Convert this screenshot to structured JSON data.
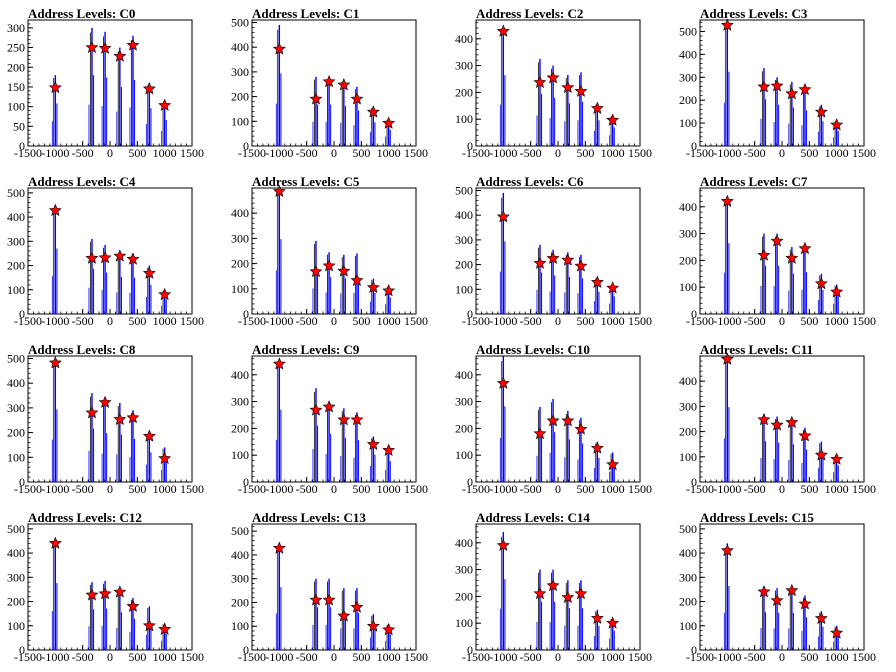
{
  "chart_data": [
    {
      "type": "bar",
      "title": "Address Levels: C0",
      "xlim": [
        -1500,
        1500
      ],
      "ylim": [
        0,
        320
      ],
      "yticks": [
        0,
        50,
        100,
        150,
        200,
        250,
        300
      ],
      "xticks": [
        -1500,
        -1000,
        -500,
        0,
        500,
        1000,
        1500
      ],
      "x": [
        -1000,
        -330,
        -90,
        180,
        420,
        720,
        1000
      ],
      "peak_values": [
        180,
        300,
        290,
        250,
        280,
        160,
        110
      ],
      "marker_values": [
        148,
        250,
        248,
        228,
        256,
        145,
        103
      ]
    },
    {
      "type": "bar",
      "title": "Address Levels: C1",
      "xlim": [
        -1500,
        1500
      ],
      "ylim": [
        0,
        510
      ],
      "yticks": [
        0,
        100,
        200,
        300,
        400,
        500
      ],
      "xticks": [
        -1500,
        -1000,
        -500,
        0,
        500,
        1000,
        1500
      ],
      "x": [
        -1000,
        -330,
        -90,
        180,
        420,
        720,
        1000
      ],
      "peak_values": [
        490,
        280,
        280,
        270,
        240,
        160,
        110
      ],
      "marker_values": [
        392,
        190,
        260,
        247,
        190,
        137,
        92
      ]
    },
    {
      "type": "bar",
      "title": "Address Levels: C2",
      "xlim": [
        -1500,
        1500
      ],
      "ylim": [
        0,
        470
      ],
      "yticks": [
        0,
        100,
        200,
        300,
        400
      ],
      "xticks": [
        -1500,
        -1000,
        -500,
        0,
        500,
        1000,
        1500
      ],
      "x": [
        -1000,
        -330,
        -90,
        180,
        420,
        720,
        1000
      ],
      "peak_values": [
        440,
        325,
        300,
        265,
        275,
        160,
        115
      ],
      "marker_values": [
        428,
        237,
        254,
        218,
        204,
        140,
        96
      ]
    },
    {
      "type": "bar",
      "title": "Address Levels: C3",
      "xlim": [
        -1500,
        1500
      ],
      "ylim": [
        0,
        550
      ],
      "yticks": [
        0,
        100,
        200,
        300,
        400,
        500
      ],
      "xticks": [
        -1500,
        -1000,
        -500,
        0,
        500,
        1000,
        1500
      ],
      "x": [
        -1000,
        -330,
        -90,
        180,
        420,
        720,
        1000
      ],
      "peak_values": [
        540,
        340,
        300,
        280,
        260,
        180,
        110
      ],
      "marker_values": [
        527,
        258,
        262,
        228,
        246,
        148,
        92
      ]
    },
    {
      "type": "bar",
      "title": "Address Levels: C4",
      "xlim": [
        -1500,
        1500
      ],
      "ylim": [
        0,
        520
      ],
      "yticks": [
        0,
        100,
        200,
        300,
        400,
        500
      ],
      "xticks": [
        -1500,
        -1000,
        -500,
        0,
        500,
        1000,
        1500
      ],
      "x": [
        -1000,
        -330,
        -90,
        180,
        420,
        720,
        1000
      ],
      "peak_values": [
        450,
        310,
        285,
        255,
        250,
        200,
        100
      ],
      "marker_values": [
        427,
        230,
        232,
        239,
        226,
        168,
        80
      ]
    },
    {
      "type": "bar",
      "title": "Address Levels: C5",
      "xlim": [
        -1500,
        1500
      ],
      "ylim": [
        0,
        500
      ],
      "yticks": [
        0,
        100,
        200,
        300,
        400
      ],
      "xticks": [
        -1500,
        -1000,
        -500,
        0,
        500,
        1000,
        1500
      ],
      "x": [
        -1000,
        -330,
        -90,
        180,
        420,
        720,
        1000
      ],
      "peak_values": [
        495,
        290,
        245,
        235,
        240,
        140,
        110
      ],
      "marker_values": [
        486,
        168,
        191,
        170,
        133,
        105,
        92
      ]
    },
    {
      "type": "bar",
      "title": "Address Levels: C6",
      "xlim": [
        -1500,
        1500
      ],
      "ylim": [
        0,
        510
      ],
      "yticks": [
        0,
        100,
        200,
        300,
        400,
        500
      ],
      "xticks": [
        -1500,
        -1000,
        -500,
        0,
        500,
        1000,
        1500
      ],
      "x": [
        -1000,
        -330,
        -90,
        180,
        420,
        720,
        1000
      ],
      "peak_values": [
        490,
        280,
        260,
        250,
        240,
        150,
        120
      ],
      "marker_values": [
        393,
        205,
        225,
        218,
        194,
        128,
        105
      ]
    },
    {
      "type": "bar",
      "title": "Address Levels: C7",
      "xlim": [
        -1500,
        1500
      ],
      "ylim": [
        0,
        470
      ],
      "yticks": [
        0,
        100,
        200,
        300,
        400
      ],
      "xticks": [
        -1500,
        -1000,
        -500,
        0,
        500,
        1000,
        1500
      ],
      "x": [
        -1000,
        -330,
        -90,
        180,
        420,
        720,
        1000
      ],
      "peak_values": [
        440,
        300,
        300,
        250,
        260,
        150,
        110
      ],
      "marker_values": [
        420,
        219,
        272,
        208,
        244,
        113,
        82
      ]
    },
    {
      "type": "bar",
      "title": "Address Levels: C8",
      "xlim": [
        -1500,
        1500
      ],
      "ylim": [
        0,
        510
      ],
      "yticks": [
        0,
        100,
        200,
        300,
        400,
        500
      ],
      "xticks": [
        -1500,
        -1000,
        -500,
        0,
        500,
        1000,
        1500
      ],
      "x": [
        -1000,
        -330,
        -90,
        180,
        420,
        720,
        1000
      ],
      "peak_values": [
        490,
        360,
        330,
        320,
        290,
        200,
        140
      ],
      "marker_values": [
        482,
        280,
        322,
        253,
        260,
        185,
        95
      ]
    },
    {
      "type": "bar",
      "title": "Address Levels: C9",
      "xlim": [
        -1500,
        1500
      ],
      "ylim": [
        0,
        470
      ],
      "yticks": [
        0,
        100,
        200,
        300,
        400
      ],
      "xticks": [
        -1500,
        -1000,
        -500,
        0,
        500,
        1000,
        1500
      ],
      "x": [
        -1000,
        -330,
        -90,
        180,
        420,
        720,
        1000
      ],
      "peak_values": [
        450,
        350,
        300,
        275,
        260,
        170,
        130
      ],
      "marker_values": [
        440,
        268,
        280,
        232,
        232,
        140,
        118
      ]
    },
    {
      "type": "bar",
      "title": "Address Levels: C10",
      "xlim": [
        -1500,
        1500
      ],
      "ylim": [
        0,
        470
      ],
      "yticks": [
        0,
        100,
        200,
        300,
        400
      ],
      "xticks": [
        -1500,
        -1000,
        -500,
        0,
        500,
        1000,
        1500
      ],
      "x": [
        -1000,
        -330,
        -90,
        180,
        420,
        720,
        1000
      ],
      "peak_values": [
        470,
        280,
        310,
        265,
        240,
        150,
        110
      ],
      "marker_values": [
        368,
        180,
        228,
        228,
        197,
        126,
        65
      ]
    },
    {
      "type": "bar",
      "title": "Address Levels: C11",
      "xlim": [
        -1500,
        1500
      ],
      "ylim": [
        0,
        500
      ],
      "yticks": [
        0,
        100,
        200,
        300,
        400
      ],
      "xticks": [
        -1500,
        -1000,
        -500,
        0,
        500,
        1000,
        1500
      ],
      "x": [
        -1000,
        -330,
        -90,
        180,
        420,
        720,
        1000
      ],
      "peak_values": [
        495,
        270,
        260,
        250,
        215,
        160,
        110
      ],
      "marker_values": [
        487,
        247,
        226,
        236,
        183,
        107,
        90
      ]
    },
    {
      "type": "bar",
      "title": "Address Levels: C12",
      "xlim": [
        -1500,
        1500
      ],
      "ylim": [
        0,
        520
      ],
      "yticks": [
        0,
        100,
        200,
        300,
        400,
        500
      ],
      "xticks": [
        -1500,
        -1000,
        -500,
        0,
        500,
        1000,
        1500
      ],
      "x": [
        -1000,
        -330,
        -90,
        180,
        420,
        720,
        1000
      ],
      "peak_values": [
        460,
        280,
        285,
        260,
        215,
        180,
        110
      ],
      "marker_values": [
        440,
        227,
        232,
        239,
        180,
        100,
        85
      ]
    },
    {
      "type": "bar",
      "title": "Address Levels: C13",
      "xlim": [
        -1500,
        1500
      ],
      "ylim": [
        0,
        530
      ],
      "yticks": [
        0,
        100,
        200,
        300,
        400,
        500
      ],
      "xticks": [
        -1500,
        -1000,
        -500,
        0,
        500,
        1000,
        1500
      ],
      "x": [
        -1000,
        -330,
        -90,
        180,
        420,
        720,
        1000
      ],
      "peak_values": [
        440,
        300,
        300,
        260,
        260,
        150,
        110
      ],
      "marker_values": [
        428,
        210,
        210,
        143,
        180,
        100,
        85
      ]
    },
    {
      "type": "bar",
      "title": "Address Levels: C14",
      "xlim": [
        -1500,
        1500
      ],
      "ylim": [
        0,
        470
      ],
      "yticks": [
        0,
        100,
        200,
        300,
        400
      ],
      "xticks": [
        -1500,
        -1000,
        -500,
        0,
        500,
        1000,
        1500
      ],
      "x": [
        -1000,
        -330,
        -90,
        180,
        420,
        720,
        1000
      ],
      "peak_values": [
        440,
        300,
        300,
        260,
        260,
        150,
        120
      ],
      "marker_values": [
        390,
        210,
        240,
        196,
        210,
        118,
        100
      ]
    },
    {
      "type": "bar",
      "title": "Address Levels: C15",
      "xlim": [
        -1500,
        1500
      ],
      "ylim": [
        0,
        520
      ],
      "yticks": [
        0,
        100,
        200,
        300,
        400,
        500
      ],
      "xticks": [
        -1500,
        -1000,
        -500,
        0,
        500,
        1000,
        1500
      ],
      "x": [
        -1000,
        -330,
        -90,
        180,
        420,
        720,
        1000
      ],
      "peak_values": [
        440,
        260,
        255,
        255,
        225,
        160,
        100
      ],
      "marker_values": [
        410,
        240,
        204,
        245,
        190,
        130,
        70
      ]
    }
  ],
  "colors": {
    "bars": "#0000ff",
    "inner_bars": "#000000",
    "marker_fill": "#ff0000",
    "marker_edge": "#000000",
    "axis": "#000000"
  },
  "marker_shape": "star"
}
